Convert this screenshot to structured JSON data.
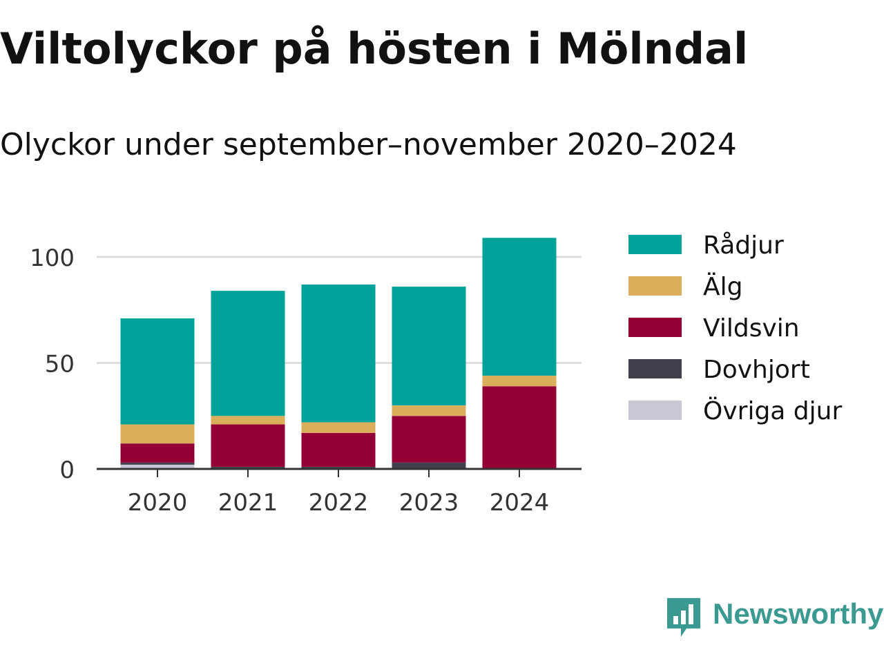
{
  "title": "Viltolyckor på hösten i Mölndal",
  "subtitle": "Olyckor under september–november 2020–2024",
  "brand": {
    "name": "Newsworthy",
    "color": "#3a9a91",
    "icon": "newsworthy-logo-icon"
  },
  "colors": {
    "grid": "#dddddd",
    "baseline": "#333333",
    "tick_text": "#333333"
  },
  "chart_data": {
    "type": "bar",
    "stacked": true,
    "categories": [
      "2020",
      "2021",
      "2022",
      "2023",
      "2024"
    ],
    "series": [
      {
        "name": "Övriga djur",
        "color": "#c8c7d6",
        "values": [
          2,
          0,
          0,
          0,
          0
        ]
      },
      {
        "name": "Dovhjort",
        "color": "#41404e",
        "values": [
          1,
          1,
          1,
          3,
          0
        ]
      },
      {
        "name": "Vildsvin",
        "color": "#930036",
        "values": [
          9,
          20,
          16,
          22,
          39
        ]
      },
      {
        "name": "Älg",
        "color": "#dbae5b",
        "values": [
          9,
          4,
          5,
          5,
          5
        ]
      },
      {
        "name": "Rådjur",
        "color": "#00a29a",
        "values": [
          50,
          59,
          65,
          56,
          65
        ]
      }
    ],
    "legend_order": [
      "Rådjur",
      "Älg",
      "Vildsvin",
      "Dovhjort",
      "Övriga djur"
    ],
    "ylim": [
      0,
      110
    ],
    "yticks": [
      0,
      50,
      100
    ],
    "grid": true,
    "legend_position": "right",
    "xlabel": "",
    "ylabel": ""
  }
}
